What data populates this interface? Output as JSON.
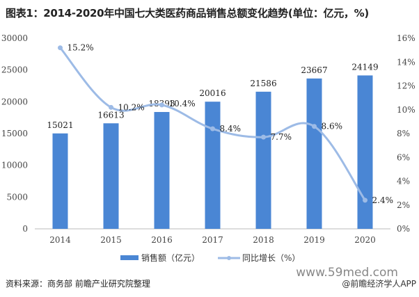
{
  "title": "图表1：2014-2020年中国七大类医药商品销售总额变化趋势(单位：亿元，%)",
  "source": "资料来源：商务部 前瞻产业研究院整理",
  "credit": "@前瞻经济学人APP",
  "watermark": "www.59med.com",
  "chart_data": {
    "type": "bar+line",
    "categories": [
      "2014",
      "2015",
      "2016",
      "2017",
      "2018",
      "2019",
      "2020"
    ],
    "series": [
      {
        "name": "销售额（亿元）",
        "type": "bar",
        "axis": "left",
        "color": "#4a86d4",
        "values": [
          15021,
          16613,
          18393,
          20016,
          21586,
          23667,
          24149
        ],
        "labels": [
          "15021",
          "16613",
          "18393",
          "20016",
          "21586",
          "23667",
          "24149"
        ]
      },
      {
        "name": "同比增长（%）",
        "type": "line",
        "axis": "right",
        "color": "#9dbbe6",
        "values": [
          15.2,
          10.2,
          10.4,
          8.4,
          7.7,
          8.6,
          2.4
        ],
        "labels": [
          "15.2%",
          "10.2%",
          "10.4%",
          "8.4%",
          "7.7%",
          "8.6%",
          "2.4%"
        ]
      }
    ],
    "y_left": {
      "range": [
        0,
        30000
      ],
      "ticks": [
        "0",
        "5000",
        "10000",
        "15000",
        "20000",
        "25000",
        "30000"
      ]
    },
    "y_right": {
      "range": [
        0,
        16
      ],
      "ticks": [
        "0%",
        "2%",
        "4%",
        "6%",
        "8%",
        "10%",
        "12%",
        "14%",
        "16%"
      ]
    },
    "grid": false,
    "legend": "bottom"
  }
}
